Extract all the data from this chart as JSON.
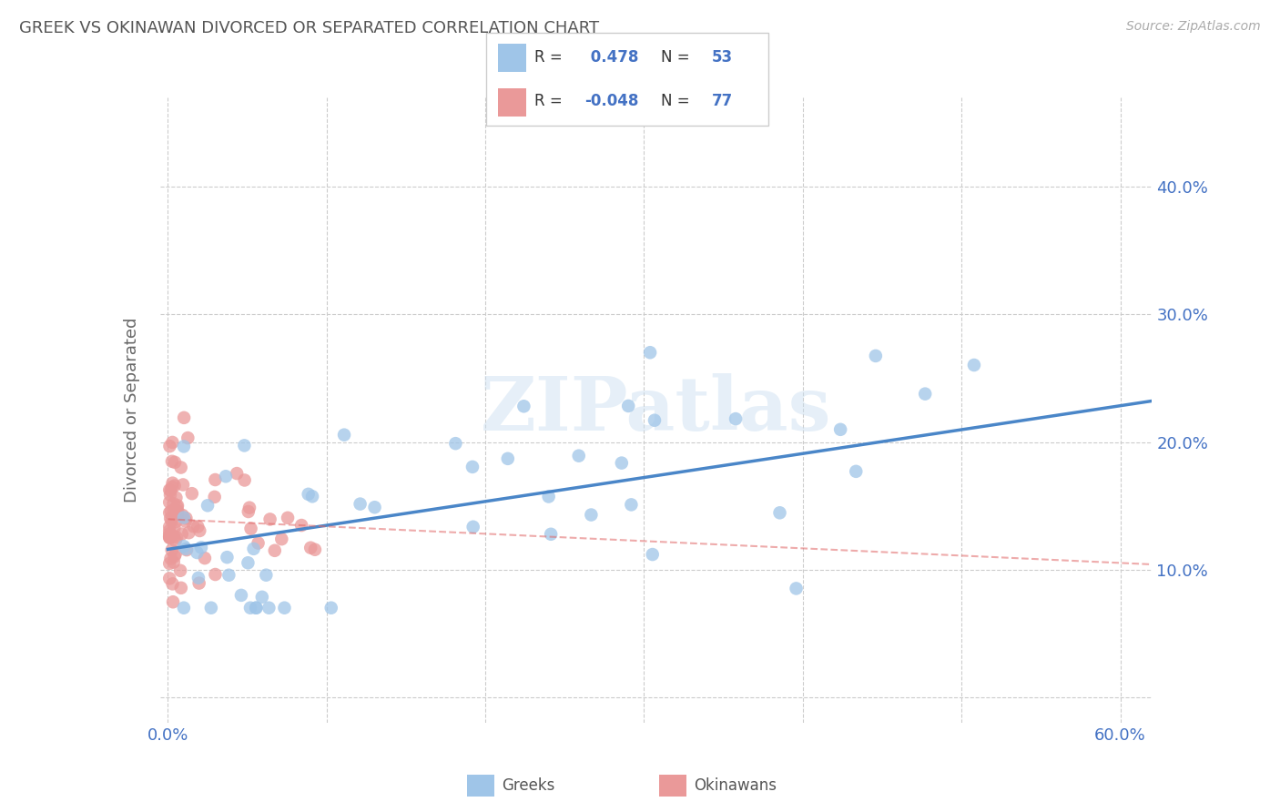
{
  "title": "GREEK VS OKINAWAN DIVORCED OR SEPARATED CORRELATION CHART",
  "source": "Source: ZipAtlas.com",
  "ylabel": "Divorced or Separated",
  "watermark": "ZIPatlas",
  "xlim": [
    -0.005,
    0.62
  ],
  "ylim": [
    -0.02,
    0.47
  ],
  "xticks": [
    0.0,
    0.1,
    0.2,
    0.3,
    0.4,
    0.5,
    0.6
  ],
  "yticks": [
    0.0,
    0.1,
    0.2,
    0.3,
    0.4
  ],
  "ytick_labels_left": [
    "",
    "",
    "",
    "",
    ""
  ],
  "ytick_labels_right": [
    "",
    "10.0%",
    "20.0%",
    "30.0%",
    "40.0%"
  ],
  "xtick_labels": [
    "0.0%",
    "",
    "",
    "",
    "",
    "",
    "60.0%"
  ],
  "greek_R": 0.478,
  "greek_N": 53,
  "okinawan_R": -0.048,
  "okinawan_N": 77,
  "greek_color": "#9fc5e8",
  "okinawan_color": "#ea9999",
  "greek_line_color": "#4a86c8",
  "okinawan_line_color": "#e06666",
  "grid_color": "#cccccc",
  "title_color": "#555555",
  "axis_color": "#4472c4",
  "legend_R_color": "#4472c4",
  "legend_N_color": "#4472c4"
}
